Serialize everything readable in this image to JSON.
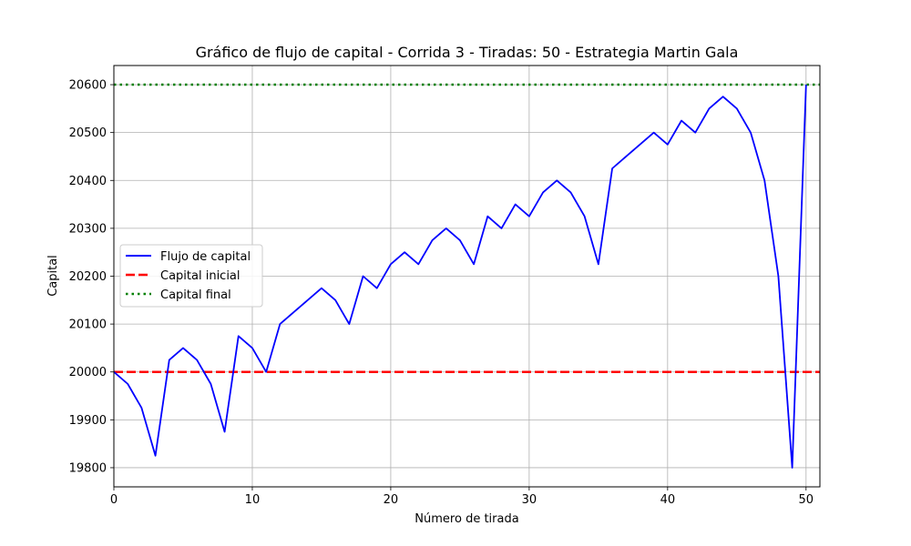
{
  "chart_data": {
    "type": "line",
    "title": "Gráfico de flujo de capital - Corrida 3 - Tiradas: 50 - Estrategia Martin Gala",
    "xlabel": "Número de tirada",
    "ylabel": "Capital",
    "xlim": [
      0,
      51
    ],
    "ylim": [
      19760,
      20640
    ],
    "xticks": [
      0,
      10,
      20,
      30,
      40,
      50
    ],
    "yticks": [
      19800,
      19900,
      20000,
      20100,
      20200,
      20300,
      20400,
      20500,
      20600
    ],
    "grid": true,
    "legend_position": "center-left",
    "series": [
      {
        "name": "Flujo de capital",
        "color": "#0000ff",
        "style": "solid",
        "x": [
          0,
          1,
          2,
          3,
          4,
          5,
          6,
          7,
          8,
          9,
          10,
          11,
          12,
          13,
          14,
          15,
          16,
          17,
          18,
          19,
          20,
          21,
          22,
          23,
          24,
          25,
          26,
          27,
          28,
          29,
          30,
          31,
          32,
          33,
          34,
          35,
          36,
          37,
          38,
          39,
          40,
          41,
          42,
          43,
          44,
          45,
          46,
          47,
          48,
          49,
          50
        ],
        "values": [
          20000,
          19975,
          19925,
          19825,
          20025,
          20050,
          20025,
          19975,
          19875,
          20075,
          20050,
          20000,
          20100,
          20125,
          20150,
          20175,
          20150,
          20100,
          20200,
          20175,
          20225,
          20250,
          20225,
          20275,
          20300,
          20275,
          20225,
          20325,
          20300,
          20350,
          20325,
          20375,
          20400,
          20375,
          20325,
          20225,
          20425,
          20450,
          20475,
          20500,
          20475,
          20525,
          20500,
          20550,
          20575,
          20550,
          20500,
          20400,
          20200,
          19800,
          20600
        ]
      },
      {
        "name": "Capital inicial",
        "color": "#ff0000",
        "style": "dashed",
        "constant": 20000
      },
      {
        "name": "Capital final",
        "color": "#008000",
        "style": "dotted",
        "constant": 20600
      }
    ]
  }
}
